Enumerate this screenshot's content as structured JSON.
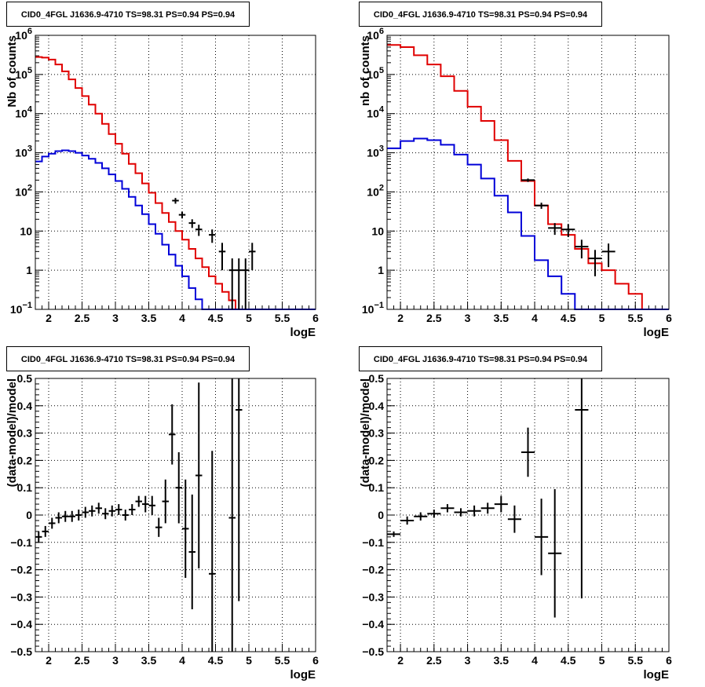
{
  "chart_data": [
    {
      "type": "line",
      "title": "CID0_4FGL J1636.9-4710 TS=98.31 PS=0.94 PS=0.94",
      "xlabel": "logE",
      "ylabel": "Nb of counts",
      "xlim": [
        1.8,
        6.0
      ],
      "ylim": [
        0.1,
        1000000
      ],
      "yscale": "log",
      "grid": true,
      "xticks": [
        "2",
        "2.5",
        "3",
        "3.5",
        "4",
        "4.5",
        "5",
        "5.5",
        "6"
      ],
      "yticks": [
        {
          "v": 0.1,
          "base": "10",
          "exp": "−1"
        },
        {
          "v": 1,
          "label": "1"
        },
        {
          "v": 10,
          "label": "10"
        },
        {
          "v": 100,
          "base": "10",
          "exp": "2"
        },
        {
          "v": 1000,
          "base": "10",
          "exp": "3"
        },
        {
          "v": 10000,
          "base": "10",
          "exp": "4"
        },
        {
          "v": 100000,
          "base": "10",
          "exp": "5"
        },
        {
          "v": 1000000,
          "base": "10",
          "exp": "6"
        }
      ],
      "series": [
        {
          "kind": "histogram",
          "color": "#e00000",
          "edges": [
            1.8,
            1.9,
            2.0,
            2.1,
            2.2,
            2.3,
            2.4,
            2.5,
            2.6,
            2.7,
            2.8,
            2.9,
            3.0,
            3.1,
            3.2,
            3.3,
            3.4,
            3.5,
            3.6,
            3.7,
            3.8,
            3.9,
            4.0,
            4.1,
            4.2,
            4.3,
            4.4,
            4.5,
            4.6,
            4.7,
            4.8,
            4.9,
            5.0,
            5.1,
            5.2,
            5.3,
            5.4,
            5.5,
            5.6,
            5.7,
            5.8,
            5.9,
            6.0
          ],
          "values": [
            280000,
            270000,
            240000,
            180000,
            120000,
            75000,
            45000,
            28000,
            17000,
            10000,
            5500,
            3000,
            1700,
            950,
            520,
            300,
            165,
            95,
            52,
            29,
            17,
            10,
            6,
            3.5,
            2.0,
            1.2,
            0.7,
            0.45,
            0.28,
            0.17,
            0.1,
            0.1,
            0.1,
            0.1,
            0.1,
            0.1,
            0.1,
            0.1,
            0.1,
            0.1,
            0.1,
            0.1
          ]
        },
        {
          "kind": "histogram",
          "color": "#0000d8",
          "edges": [
            1.8,
            1.9,
            2.0,
            2.1,
            2.2,
            2.3,
            2.4,
            2.5,
            2.6,
            2.7,
            2.8,
            2.9,
            3.0,
            3.1,
            3.2,
            3.3,
            3.4,
            3.5,
            3.6,
            3.7,
            3.8,
            3.9,
            4.0,
            4.1,
            4.2,
            4.3,
            4.4,
            4.5,
            4.6,
            4.7,
            4.8,
            4.9,
            5.0,
            5.1,
            5.2,
            5.3,
            5.4,
            5.5,
            5.6,
            5.7,
            5.8,
            5.9,
            6.0
          ],
          "values": [
            600,
            800,
            950,
            1100,
            1150,
            1100,
            1000,
            850,
            700,
            550,
            400,
            280,
            190,
            120,
            75,
            45,
            27,
            15,
            8.5,
            4.5,
            2.5,
            1.3,
            0.7,
            0.35,
            0.18,
            0.1,
            0.1,
            0.1,
            0.1,
            0.1,
            0.1,
            0.1,
            0.1,
            0.1,
            0.1,
            0.1,
            0.1,
            0.1,
            0.1,
            0.1,
            0.1,
            0.1
          ]
        },
        {
          "kind": "points",
          "color": "#000000",
          "points": [
            [
              3.9,
              60,
              10,
              0.05
            ],
            [
              4.0,
              26,
              5,
              0.05
            ],
            [
              4.15,
              16,
              4,
              0.05
            ],
            [
              4.25,
              11,
              3.5,
              0.05
            ],
            [
              4.45,
              8,
              3,
              0.05
            ],
            [
              4.6,
              3,
              2,
              0.05
            ],
            [
              4.75,
              1,
              1,
              0.05
            ],
            [
              4.85,
              1,
              1,
              0.05
            ],
            [
              4.95,
              1,
              1,
              0.05
            ],
            [
              5.05,
              3,
              2,
              0.05
            ]
          ]
        }
      ]
    },
    {
      "type": "line",
      "title": "CID0_4FGL J1636.9-4710 TS=98.31 PS=0.94 PS=0.94",
      "xlabel": "logE",
      "ylabel": "nb of counts",
      "xlim": [
        1.8,
        6.0
      ],
      "ylim": [
        0.1,
        1000000
      ],
      "yscale": "log",
      "grid": true,
      "xticks": [
        "2",
        "2.5",
        "3",
        "3.5",
        "4",
        "4.5",
        "5",
        "5.5",
        "6"
      ],
      "yticks": [
        {
          "v": 0.1,
          "base": "10",
          "exp": "−1"
        },
        {
          "v": 1,
          "label": "1"
        },
        {
          "v": 10,
          "label": "10"
        },
        {
          "v": 100,
          "base": "10",
          "exp": "2"
        },
        {
          "v": 1000,
          "base": "10",
          "exp": "3"
        },
        {
          "v": 10000,
          "base": "10",
          "exp": "4"
        },
        {
          "v": 100000,
          "base": "10",
          "exp": "5"
        },
        {
          "v": 1000000,
          "base": "10",
          "exp": "6"
        }
      ],
      "series": [
        {
          "kind": "histogram",
          "color": "#e00000",
          "edges": [
            1.8,
            2.0,
            2.2,
            2.4,
            2.6,
            2.8,
            3.0,
            3.2,
            3.4,
            3.6,
            3.8,
            4.0,
            4.2,
            4.4,
            4.6,
            4.8,
            5.0,
            5.2,
            5.4,
            5.6,
            5.8,
            6.0
          ],
          "values": [
            570000,
            500000,
            310000,
            180000,
            90000,
            38000,
            15000,
            6500,
            2100,
            620,
            190,
            45,
            15,
            8,
            3.5,
            1.5,
            1.0,
            0.45,
            0.25,
            0.1,
            0.1
          ]
        },
        {
          "kind": "histogram",
          "color": "#0000d8",
          "edges": [
            1.8,
            2.0,
            2.2,
            2.4,
            2.6,
            2.8,
            3.0,
            3.2,
            3.4,
            3.6,
            3.8,
            4.0,
            4.2,
            4.4,
            4.6,
            4.8,
            5.0,
            5.2,
            5.4,
            5.6,
            5.8,
            6.0
          ],
          "values": [
            1300,
            2000,
            2300,
            2100,
            1600,
            900,
            500,
            220,
            80,
            30,
            7.5,
            1.8,
            0.7,
            0.25,
            0.1,
            0.1,
            0.1,
            0.1,
            0.1,
            0.1,
            0.1
          ]
        },
        {
          "kind": "points",
          "color": "#000000",
          "points": [
            [
              3.9,
              200,
              20,
              0.1
            ],
            [
              4.1,
              45,
              8,
              0.1
            ],
            [
              4.3,
              12,
              4,
              0.1
            ],
            [
              4.5,
              11,
              4,
              0.1
            ],
            [
              4.7,
              4,
              2,
              0.1
            ],
            [
              4.9,
              2,
              1.3,
              0.1
            ],
            [
              5.1,
              3,
              1.8,
              0.1
            ]
          ]
        }
      ]
    },
    {
      "type": "scatter",
      "title": "CID0_4FGL J1636.9-4710 TS=98.31 PS=0.94 PS=0.94",
      "xlabel": "logE",
      "ylabel": "(data-model)/model",
      "xlim": [
        1.8,
        6.0
      ],
      "ylim": [
        -0.5,
        0.5
      ],
      "grid": true,
      "xticks": [
        "2",
        "2.5",
        "3",
        "3.5",
        "4",
        "4.5",
        "5",
        "5.5",
        "6"
      ],
      "yticks": [
        "−0.5",
        "−0.4",
        "−0.3",
        "−0.2",
        "−0.1",
        "0",
        "0.1",
        "0.2",
        "0.3",
        "0.4",
        "0.5"
      ],
      "series": [
        {
          "kind": "points",
          "color": "#000000",
          "points": [
            [
              1.85,
              -0.08,
              0.02,
              0.05
            ],
            [
              1.95,
              -0.06,
              0.02,
              0.05
            ],
            [
              2.05,
              -0.03,
              0.02,
              0.05
            ],
            [
              2.15,
              -0.01,
              0.02,
              0.05
            ],
            [
              2.25,
              -0.005,
              0.02,
              0.05
            ],
            [
              2.35,
              -0.005,
              0.02,
              0.05
            ],
            [
              2.45,
              0.0,
              0.02,
              0.05
            ],
            [
              2.55,
              0.01,
              0.02,
              0.05
            ],
            [
              2.65,
              0.015,
              0.02,
              0.05
            ],
            [
              2.75,
              0.025,
              0.02,
              0.05
            ],
            [
              2.85,
              0.005,
              0.02,
              0.05
            ],
            [
              2.95,
              0.015,
              0.02,
              0.05
            ],
            [
              3.05,
              0.02,
              0.02,
              0.05
            ],
            [
              3.15,
              0.0,
              0.02,
              0.05
            ],
            [
              3.25,
              0.02,
              0.02,
              0.05
            ],
            [
              3.35,
              0.05,
              0.02,
              0.05
            ],
            [
              3.45,
              0.04,
              0.03,
              0.05
            ],
            [
              3.55,
              0.035,
              0.035,
              0.05
            ],
            [
              3.65,
              -0.045,
              0.035,
              0.05
            ],
            [
              3.75,
              0.05,
              0.08,
              0.05
            ],
            [
              3.85,
              0.295,
              0.11,
              0.05
            ],
            [
              3.95,
              0.1,
              0.13,
              0.05
            ],
            [
              4.05,
              -0.05,
              0.18,
              0.05
            ],
            [
              4.15,
              -0.135,
              0.21,
              0.05
            ],
            [
              4.25,
              0.145,
              0.34,
              0.05
            ],
            [
              4.45,
              -0.215,
              0.45,
              0.05
            ],
            [
              4.75,
              -0.01,
              0.7,
              0.05
            ],
            [
              4.85,
              0.385,
              0.7,
              0.05
            ]
          ]
        }
      ]
    },
    {
      "type": "scatter",
      "title": "CID0_4FGL J1636.9-4710 TS=98.31 PS=0.94 PS=0.94",
      "xlabel": "logE",
      "ylabel": "(data-model)/model",
      "xlim": [
        1.8,
        6.0
      ],
      "ylim": [
        -0.5,
        0.5
      ],
      "grid": true,
      "xticks": [
        "2",
        "2.5",
        "3",
        "3.5",
        "4",
        "4.5",
        "5",
        "5.5",
        "6"
      ],
      "yticks": [
        "−0.5",
        "−0.4",
        "−0.3",
        "−0.2",
        "−0.1",
        "0",
        "0.1",
        "0.2",
        "0.3",
        "0.4",
        "0.5"
      ],
      "series": [
        {
          "kind": "points",
          "color": "#000000",
          "points": [
            [
              1.9,
              -0.07,
              0.01,
              0.1
            ],
            [
              2.1,
              -0.02,
              0.015,
              0.1
            ],
            [
              2.3,
              -0.005,
              0.015,
              0.1
            ],
            [
              2.5,
              0.005,
              0.015,
              0.1
            ],
            [
              2.7,
              0.025,
              0.015,
              0.1
            ],
            [
              2.9,
              0.01,
              0.015,
              0.1
            ],
            [
              3.1,
              0.015,
              0.02,
              0.1
            ],
            [
              3.3,
              0.025,
              0.02,
              0.1
            ],
            [
              3.5,
              0.04,
              0.03,
              0.1
            ],
            [
              3.7,
              -0.015,
              0.05,
              0.1
            ],
            [
              3.9,
              0.23,
              0.09,
              0.1
            ],
            [
              4.1,
              -0.08,
              0.14,
              0.1
            ],
            [
              4.3,
              -0.14,
              0.235,
              0.1
            ],
            [
              4.7,
              0.385,
              0.69,
              0.1
            ]
          ]
        }
      ]
    }
  ]
}
